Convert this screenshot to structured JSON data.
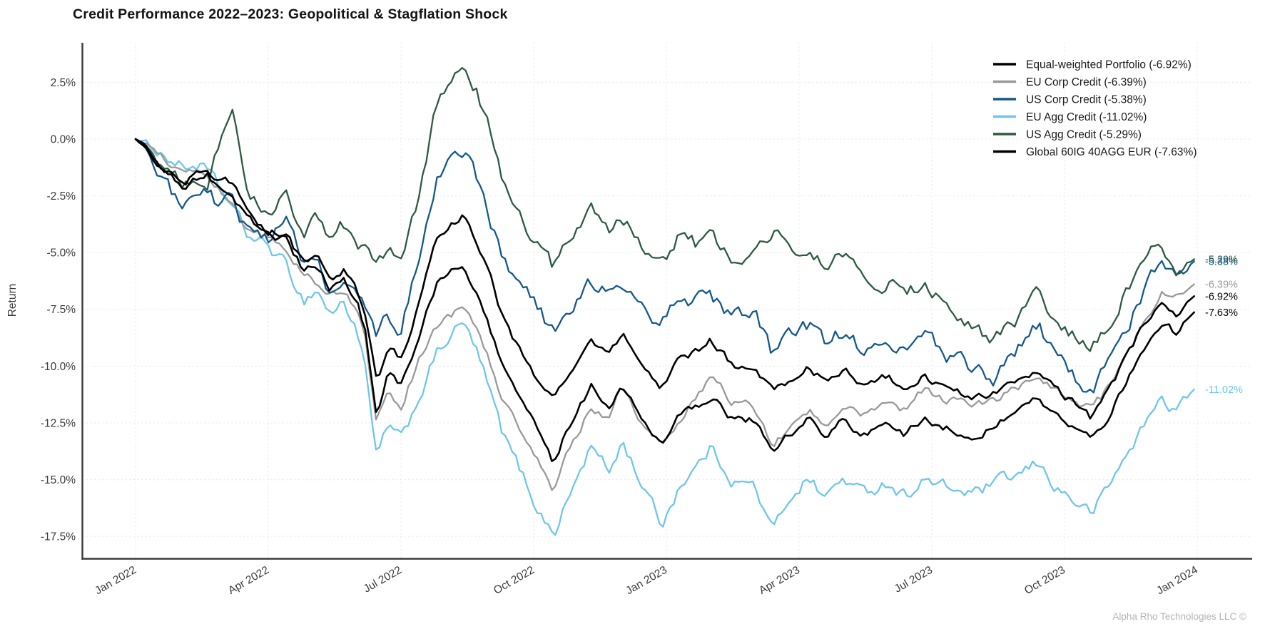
{
  "chart_data": {
    "type": "line",
    "title": "Credit Performance 2022–2023: Geopolitical & Stagflation Shock",
    "xlabel": "",
    "ylabel": "Return",
    "watermark": "Alpha Rho Technologies LLC ©",
    "legend_position": "upper right",
    "grid": true,
    "x_unit": "months since Jan 2022",
    "xlim": [
      -1.2,
      25.2
    ],
    "ylim": [
      -18.6,
      4.2
    ],
    "y_ticks": [
      {
        "value": 2.5,
        "label": "2.5%"
      },
      {
        "value": 0.0,
        "label": "0.0%"
      },
      {
        "value": -2.5,
        "label": "-2.5%"
      },
      {
        "value": -5.0,
        "label": "-5.0%"
      },
      {
        "value": -7.5,
        "label": "-7.5%"
      },
      {
        "value": -10.0,
        "label": "-10.0%"
      },
      {
        "value": -12.5,
        "label": "-12.5%"
      },
      {
        "value": -15.0,
        "label": "-15.0%"
      },
      {
        "value": -17.5,
        "label": "-17.5%"
      }
    ],
    "x_ticks": [
      {
        "t": 0,
        "label": "Jan 2022"
      },
      {
        "t": 3,
        "label": "Apr 2022"
      },
      {
        "t": 6,
        "label": "Jul 2022"
      },
      {
        "t": 9,
        "label": "Oct 2022"
      },
      {
        "t": 12,
        "label": "Jan 2023"
      },
      {
        "t": 15,
        "label": "Apr 2023"
      },
      {
        "t": 18,
        "label": "Jul 2023"
      },
      {
        "t": 21,
        "label": "Oct 2023"
      },
      {
        "t": 24,
        "label": "Jan 2024"
      }
    ],
    "x": [
      0,
      0.25,
      0.5,
      0.8,
      1.1,
      1.4,
      1.6,
      1.9,
      2.2,
      2.5,
      3.0,
      3.4,
      3.8,
      4.1,
      4.4,
      4.7,
      5.0,
      5.2,
      5.45,
      5.7,
      6.0,
      6.4,
      6.8,
      7.1,
      7.4,
      7.7,
      8.0,
      8.3,
      8.7,
      9.1,
      9.45,
      9.7,
      10.3,
      10.7,
      11.0,
      11.5,
      11.9,
      12.3,
      12.7,
      13.0,
      13.5,
      14.0,
      14.4,
      14.8,
      15.2,
      15.6,
      16.0,
      16.4,
      17.0,
      17.4,
      17.8,
      18.2,
      18.6,
      19.0,
      19.4,
      20.0,
      20.4,
      20.8,
      21.2,
      21.6,
      22.0,
      22.4,
      22.8,
      23.2,
      23.5,
      23.93
    ],
    "series": [
      {
        "slug": "equal_weighted",
        "name": "Equal-weighted Portfolio",
        "final_return": "-6.92%",
        "legend_label": "Equal-weighted Portfolio (-6.92%)",
        "color": "#000000",
        "noise_amp": 0.18,
        "values": [
          0,
          -0.5,
          -1.1,
          -1.5,
          -1.9,
          -1.4,
          -1.3,
          -1.8,
          -1.9,
          -3.2,
          -4.1,
          -4.1,
          -5.6,
          -5.3,
          -6.3,
          -5.8,
          -6.7,
          -7.9,
          -10.8,
          -9.2,
          -9.7,
          -7.3,
          -4.5,
          -3.8,
          -3.3,
          -4.4,
          -6.0,
          -7.9,
          -9.4,
          -10.7,
          -11.6,
          -10.6,
          -8.7,
          -9.5,
          -8.5,
          -10.1,
          -10.9,
          -9.6,
          -9.4,
          -8.8,
          -10.0,
          -10.0,
          -11.1,
          -10.6,
          -9.9,
          -10.7,
          -10.1,
          -10.8,
          -10.4,
          -11.0,
          -10.5,
          -10.9,
          -11.2,
          -11.4,
          -11.2,
          -10.6,
          -10.2,
          -11.0,
          -11.6,
          -12.3,
          -11.1,
          -9.6,
          -8.1,
          -7.0,
          -7.7,
          -6.92
        ]
      },
      {
        "slug": "eu_corp_credit",
        "name": "EU Corp Credit",
        "final_return": "-6.39%",
        "legend_label": "EU Corp Credit (-6.39%)",
        "color": "#999999",
        "noise_amp": 0.2,
        "values": [
          0,
          -0.2,
          -0.7,
          -1.2,
          -1.6,
          -1.4,
          -1.6,
          -2.3,
          -2.9,
          -3.8,
          -4.3,
          -4.9,
          -5.9,
          -6.4,
          -7.0,
          -6.6,
          -7.4,
          -9.0,
          -12.5,
          -11.0,
          -11.7,
          -9.7,
          -8.3,
          -7.8,
          -7.4,
          -8.4,
          -9.8,
          -11.4,
          -12.9,
          -14.1,
          -15.5,
          -14.2,
          -11.7,
          -12.4,
          -10.9,
          -12.7,
          -13.5,
          -12.3,
          -11.3,
          -10.4,
          -11.6,
          -11.8,
          -13.6,
          -12.6,
          -11.9,
          -12.5,
          -11.6,
          -12.2,
          -11.4,
          -11.9,
          -11.0,
          -11.4,
          -11.6,
          -11.7,
          -11.5,
          -10.9,
          -10.4,
          -11.1,
          -11.5,
          -11.9,
          -11.0,
          -9.5,
          -7.9,
          -6.7,
          -7.0,
          -6.39
        ]
      },
      {
        "slug": "us_corp_credit",
        "name": "US Corp Credit",
        "final_return": "-5.38%",
        "legend_label": "US Corp Credit (-5.38%)",
        "color": "#14598c",
        "noise_amp": 0.38,
        "values": [
          0,
          -0.5,
          -1.3,
          -2.3,
          -2.7,
          -2.0,
          -2.4,
          -2.9,
          -2.6,
          -4.1,
          -4.4,
          -3.6,
          -5.3,
          -4.8,
          -6.9,
          -6.1,
          -7.0,
          -7.6,
          -8.8,
          -7.9,
          -8.4,
          -5.5,
          -1.9,
          -1.0,
          -0.5,
          -1.7,
          -3.5,
          -5.2,
          -6.4,
          -7.4,
          -8.6,
          -7.5,
          -6.3,
          -6.9,
          -6.3,
          -7.7,
          -8.1,
          -6.7,
          -7.1,
          -6.9,
          -7.9,
          -7.7,
          -9.6,
          -8.8,
          -8.2,
          -9.0,
          -8.5,
          -9.3,
          -8.8,
          -9.6,
          -8.8,
          -9.3,
          -9.8,
          -10.2,
          -10.6,
          -9.2,
          -8.3,
          -9.6,
          -10.5,
          -11.4,
          -9.8,
          -8.3,
          -6.6,
          -5.1,
          -6.1,
          -5.38
        ]
      },
      {
        "slug": "eu_agg_credit",
        "name": "EU Agg Credit",
        "final_return": "-11.02%",
        "legend_label": "EU Agg Credit (-11.02%)",
        "color": "#6ec6ea",
        "noise_amp": 0.3,
        "values": [
          0,
          -0.2,
          -0.5,
          -0.9,
          -1.3,
          -1.1,
          -1.4,
          -2.2,
          -3.0,
          -4.2,
          -4.7,
          -5.6,
          -7.1,
          -6.6,
          -7.7,
          -7.2,
          -8.3,
          -10.2,
          -14.2,
          -12.6,
          -13.3,
          -11.4,
          -9.5,
          -8.7,
          -8.1,
          -9.3,
          -11.1,
          -13.0,
          -14.6,
          -16.3,
          -17.4,
          -16.2,
          -13.5,
          -14.7,
          -13.3,
          -15.4,
          -17.0,
          -15.2,
          -14.4,
          -13.6,
          -15.0,
          -15.3,
          -17.3,
          -15.7,
          -14.9,
          -15.8,
          -14.9,
          -15.6,
          -15.1,
          -15.7,
          -15.0,
          -15.3,
          -15.5,
          -15.6,
          -15.2,
          -14.8,
          -14.3,
          -15.3,
          -15.9,
          -16.5,
          -15.3,
          -13.9,
          -12.6,
          -11.4,
          -11.9,
          -11.02
        ]
      },
      {
        "slug": "us_agg_credit",
        "name": "US Agg Credit",
        "final_return": "-5.29%",
        "legend_label": "US Agg Credit (-5.29%)",
        "color": "#2d5a41",
        "noise_amp": 0.34,
        "values": [
          0,
          -0.3,
          -0.9,
          -1.7,
          -2.0,
          -1.8,
          -2.1,
          -0.3,
          1.2,
          -2.6,
          -3.3,
          -2.4,
          -4.0,
          -3.4,
          -4.4,
          -3.8,
          -4.6,
          -5.0,
          -5.6,
          -4.7,
          -5.2,
          -2.5,
          1.6,
          2.3,
          3.0,
          2.2,
          0.5,
          -1.8,
          -3.6,
          -4.6,
          -5.7,
          -4.4,
          -3.1,
          -3.9,
          -3.4,
          -4.7,
          -5.4,
          -4.2,
          -4.7,
          -4.3,
          -5.5,
          -5.1,
          -3.9,
          -5.2,
          -4.6,
          -5.5,
          -5.2,
          -6.2,
          -6.3,
          -6.8,
          -6.4,
          -7.0,
          -7.7,
          -8.4,
          -8.9,
          -7.9,
          -6.7,
          -7.9,
          -8.6,
          -9.3,
          -8.2,
          -6.6,
          -5.2,
          -4.6,
          -5.7,
          -5.29
        ]
      },
      {
        "slug": "global_60ig_40agg_eur",
        "name": "Global 60IG 40AGG EUR",
        "final_return": "-7.63%",
        "legend_label": "Global 60IG 40AGG EUR (-7.63%)",
        "color": "#000000",
        "noise_amp": 0.18,
        "values": [
          0,
          -0.3,
          -1.0,
          -1.6,
          -2.1,
          -1.7,
          -1.5,
          -2.1,
          -2.3,
          -3.5,
          -4.3,
          -4.4,
          -5.8,
          -5.6,
          -6.6,
          -6.2,
          -7.1,
          -8.5,
          -12.2,
          -10.3,
          -10.9,
          -8.7,
          -6.4,
          -5.9,
          -5.6,
          -6.6,
          -8.2,
          -10.0,
          -11.6,
          -12.9,
          -14.3,
          -13.0,
          -10.9,
          -11.8,
          -10.8,
          -12.5,
          -13.3,
          -12.1,
          -11.9,
          -11.3,
          -12.4,
          -12.4,
          -13.7,
          -13.0,
          -12.3,
          -13.0,
          -12.4,
          -13.0,
          -12.5,
          -13.0,
          -12.3,
          -12.7,
          -12.9,
          -13.0,
          -12.7,
          -11.9,
          -11.4,
          -12.2,
          -12.8,
          -13.3,
          -12.2,
          -10.7,
          -9.2,
          -8.0,
          -8.5,
          -7.63
        ]
      }
    ],
    "end_labels": [
      {
        "text": "-5.38%",
        "color": "#14598c",
        "value": -5.38
      },
      {
        "text": "-5.29%",
        "color": "#2d5a41",
        "value": -5.29
      },
      {
        "text": "-6.39%",
        "color": "#999999",
        "value": -6.39
      },
      {
        "text": "-6.92%",
        "color": "#000000",
        "value": -6.92
      },
      {
        "text": "-7.63%",
        "color": "#000000",
        "value": -7.63
      },
      {
        "text": "-11.02%",
        "color": "#6ec6ea",
        "value": -11.02
      }
    ],
    "colors": {
      "axis": "#3a3a3a",
      "grid": "#e5e5e5",
      "tick_text": "#3a3a3a",
      "legend_text": "#1a1a1a",
      "title_text": "#141414",
      "watermark_text": "#b4b4b4"
    }
  }
}
